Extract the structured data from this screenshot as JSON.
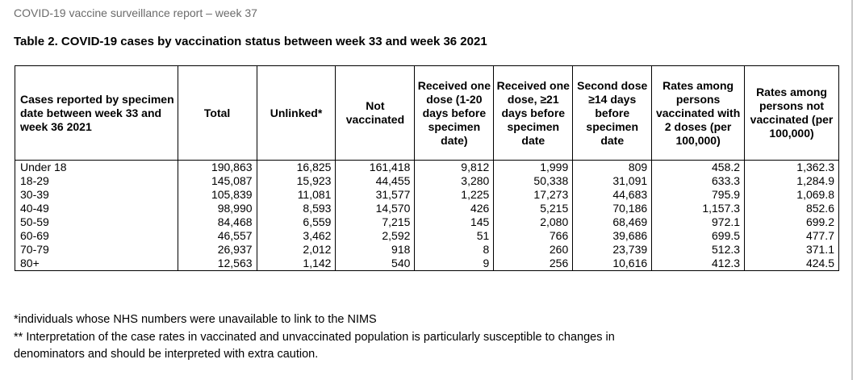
{
  "header": {
    "report_title": "COVID-19 vaccine surveillance report – week 37",
    "table_title": "Table 2. COVID-19 cases by vaccination status between week 33 and week 36 2021"
  },
  "table": {
    "columns": [
      "Cases reported by specimen date between week 33 and week 36 2021",
      "Total",
      "Unlinked*",
      "Not vaccinated",
      "Received one dose (1-20 days before specimen date)",
      "Received one dose, ≥21 days before specimen date",
      "Second dose ≥14 days before specimen date",
      "Rates among persons vaccinated with 2 doses (per 100,000)",
      "Rates among persons not vaccinated (per 100,000)"
    ],
    "rows": [
      [
        "Under 18",
        "190,863",
        "16,825",
        "161,418",
        "9,812",
        "1,999",
        "809",
        "458.2",
        "1,362.3"
      ],
      [
        "18-29",
        "145,087",
        "15,923",
        "44,455",
        "3,280",
        "50,338",
        "31,091",
        "633.3",
        "1,284.9"
      ],
      [
        "30-39",
        "105,839",
        "11,081",
        "31,577",
        "1,225",
        "17,273",
        "44,683",
        "795.9",
        "1,069.8"
      ],
      [
        "40-49",
        "98,990",
        "8,593",
        "14,570",
        "426",
        "5,215",
        "70,186",
        "1,157.3",
        "852.6"
      ],
      [
        "50-59",
        "84,468",
        "6,559",
        "7,215",
        "145",
        "2,080",
        "68,469",
        "972.1",
        "699.2"
      ],
      [
        "60-69",
        "46,557",
        "3,462",
        "2,592",
        "51",
        "766",
        "39,686",
        "699.5",
        "477.7"
      ],
      [
        "70-79",
        "26,937",
        "2,012",
        "918",
        "8",
        "260",
        "23,739",
        "512.3",
        "371.1"
      ],
      [
        "80+",
        "12,563",
        "1,142",
        "540",
        "9",
        "256",
        "10,616",
        "412.3",
        "424.5"
      ]
    ]
  },
  "footnotes": {
    "note1": "*individuals whose NHS numbers were unavailable to link to the NIMS",
    "note2": "** Interpretation of the case rates in vaccinated and unvaccinated population is particularly susceptible to changes in",
    "note3": "denominators and should be interpreted with extra caution."
  }
}
